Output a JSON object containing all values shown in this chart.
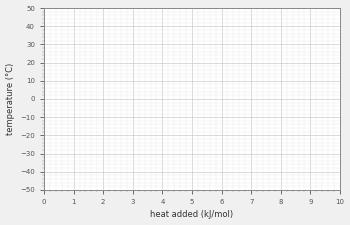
{
  "title": "",
  "xlabel": "heat added (kJ/mol)",
  "ylabel": "temperature (°C)",
  "xlim": [
    0,
    10
  ],
  "ylim": [
    -50,
    50
  ],
  "xticks": [
    0,
    1,
    2,
    3,
    4,
    5,
    6,
    7,
    8,
    9,
    10
  ],
  "yticks": [
    -50,
    -40,
    -30,
    -20,
    -10,
    0,
    10,
    20,
    30,
    40,
    50
  ],
  "bg_color": "#ffffff",
  "grid_color": "#cccccc",
  "axis_color": "#888888",
  "minor_grid_color": "#e8e8e8",
  "minor_ticks_x": 5,
  "minor_ticks_y": 5,
  "tick_fontsize": 5,
  "label_fontsize": 6,
  "outer_bg": "#f0f0f0"
}
